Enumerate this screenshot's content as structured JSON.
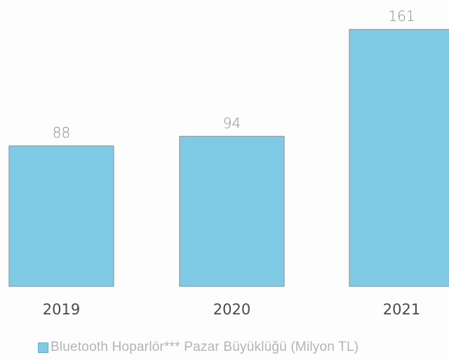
{
  "chart_data": {
    "type": "bar",
    "categories": [
      "2019",
      "2020",
      "2021"
    ],
    "series": [
      {
        "name": "Bluetooth Hoparlör*** Pazar Büyüklüğü (Milyon TL)",
        "values": [
          88,
          94,
          161
        ]
      }
    ],
    "title": "",
    "xlabel": "",
    "ylabel": "",
    "ylim": [
      0,
      161
    ],
    "grid": false,
    "legend": "bottom",
    "data_labels": true,
    "colors": {
      "bar": "#7fcbe6",
      "bar_edge": "#8a9aa0",
      "value_label": "#8a8a8a",
      "category_label": "#4a4a4a",
      "legend_text": "#b4b4b4"
    }
  }
}
